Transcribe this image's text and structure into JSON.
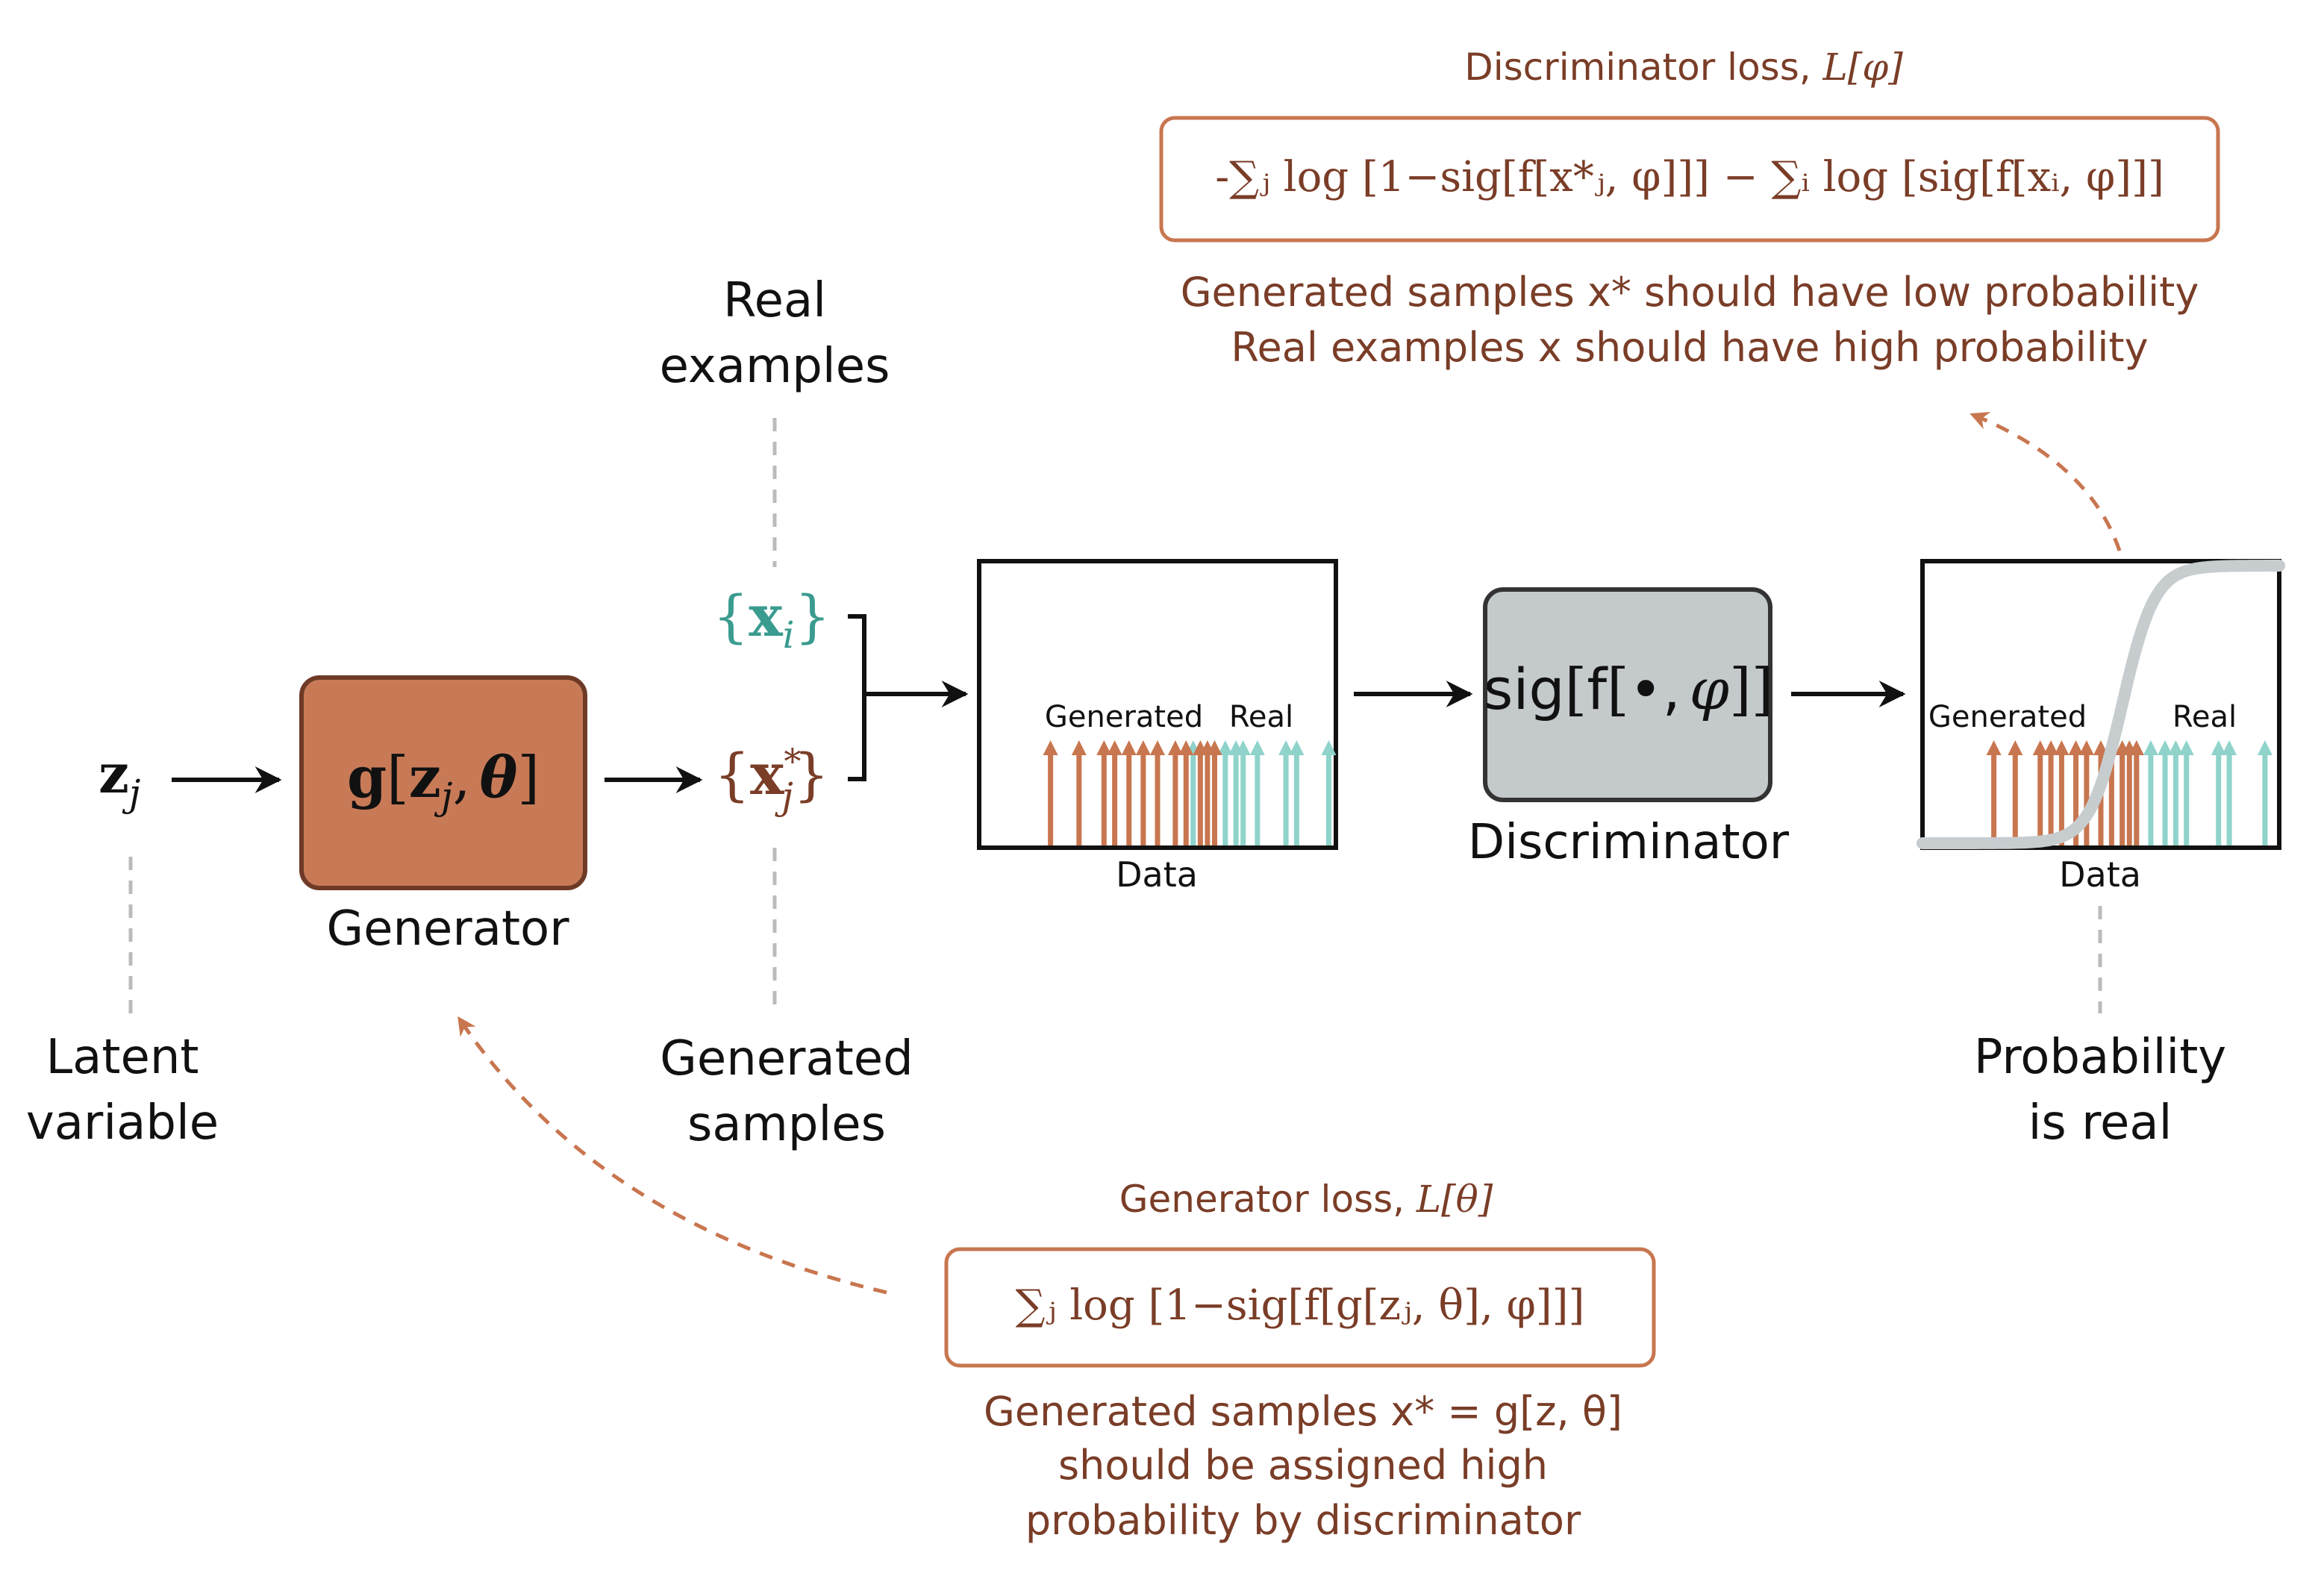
{
  "colors": {
    "generated": "#c8764f",
    "real": "#8fd3cb",
    "text_brown": "#7a3d27",
    "text_teal": "#3a9b8f",
    "generator_fill": "#c87a57",
    "generator_stroke": "#6e3a26",
    "discriminator_fill": "#c4c9cc",
    "discriminator_stroke": "#333333",
    "loss_box_stroke": "#c8764f",
    "dashed_grey": "#bbbbbb",
    "sigmoid": "#c7cccf"
  },
  "latent": {
    "symbol_main": "z",
    "symbol_sub": "j",
    "label_line1": "Latent",
    "label_line2": "variable"
  },
  "generator": {
    "func": "g",
    "open": "[",
    "arg_main": "z",
    "arg_sub": "j",
    "sep": ",",
    "param": "θ",
    "close": "]",
    "label": "Generator"
  },
  "real_examples": {
    "label_line1": "Real",
    "label_line2": "examples",
    "set_open": "{",
    "set_main": "x",
    "set_sub": "i",
    "set_close": "}"
  },
  "generated_samples": {
    "label_line1": "Generated",
    "label_line2": "samples",
    "set_open": "{",
    "set_main": "x",
    "set_sup": "*",
    "set_sub": "j",
    "set_close": "}"
  },
  "data_plot_1": {
    "generated_label": "Generated",
    "real_label": "Real",
    "xlabel": "Data",
    "generated_samples": [
      0.2,
      0.28,
      0.35,
      0.38,
      0.42,
      0.46,
      0.5,
      0.55,
      0.58,
      0.62,
      0.64,
      0.66
    ],
    "real_samples": [
      0.6,
      0.66,
      0.69,
      0.72,
      0.74,
      0.78,
      0.86,
      0.89,
      0.98
    ]
  },
  "discriminator": {
    "text_sig": "sig",
    "text_f": "f",
    "bullet": "•",
    "sep": ",",
    "param": "φ",
    "label": "Discriminator"
  },
  "data_plot_2": {
    "generated_label": "Generated",
    "real_label": "Real",
    "xlabel": "Data",
    "generated_samples": [
      0.2,
      0.26,
      0.33,
      0.36,
      0.39,
      0.43,
      0.46,
      0.5,
      0.53,
      0.56,
      0.58,
      0.6
    ],
    "real_samples": [
      0.56,
      0.6,
      0.64,
      0.68,
      0.71,
      0.74,
      0.83,
      0.86,
      0.96
    ],
    "sigmoid_center": 0.56
  },
  "probability_real": {
    "label_line1": "Probability",
    "label_line2": "is real"
  },
  "discriminator_loss": {
    "title": "Discriminator loss, ",
    "title_symbol": "L[φ]",
    "formula": "-∑ⱼ log [1−sig[f[x*ⱼ, φ]]] − ∑ᵢ log [sig[f[xᵢ, φ]]]",
    "note_line1": "Generated samples x* should have low probability",
    "note_line2": "Real examples x should have high probability"
  },
  "generator_loss": {
    "title": "Generator loss, ",
    "title_symbol": "L[θ]",
    "formula": "∑ⱼ log [1−sig[f[g[zⱼ, θ], φ]]]",
    "note_line1": "Generated samples x* = g[z, θ]",
    "note_line2": "should be assigned high",
    "note_line3": "probability by discriminator"
  }
}
